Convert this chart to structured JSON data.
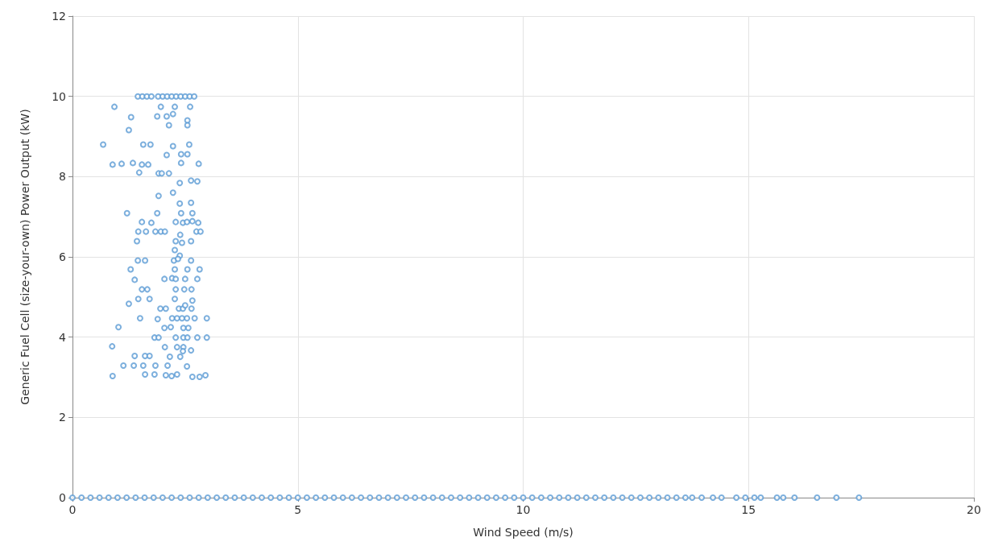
{
  "chart_data": {
    "type": "scatter",
    "xlabel": "Wind Speed (m/s)",
    "ylabel": "Generic Fuel Cell (size-your-own) Power Output (kW)",
    "xlim": [
      0,
      20
    ],
    "xticks": [
      0,
      5,
      10,
      15,
      20
    ],
    "ylim": [
      0,
      12
    ],
    "yticks": [
      0,
      2,
      4,
      6,
      8,
      10,
      12
    ],
    "grid": true,
    "marker": "circle",
    "series": [
      {
        "color": "#5b9bd5",
        "x": [
          1.45,
          1.55,
          1.65,
          1.75,
          1.9,
          2.0,
          2.1,
          2.2,
          2.3,
          2.4,
          2.5,
          2.6,
          2.7,
          0.93,
          1.96,
          2.27,
          2.61,
          1.3,
          1.88,
          2.09,
          2.23,
          2.55,
          2.55,
          2.14,
          1.25,
          0.68,
          1.57,
          1.73,
          2.23,
          2.59,
          2.09,
          2.41,
          2.55,
          0.89,
          1.09,
          1.34,
          1.54,
          1.68,
          2.8,
          2.41,
          1.48,
          1.91,
          1.98,
          2.14,
          2.38,
          2.63,
          2.77,
          1.91,
          2.23,
          2.38,
          2.63,
          1.21,
          1.88,
          2.41,
          2.66,
          1.54,
          1.75,
          2.29,
          2.45,
          2.54,
          2.66,
          2.79,
          1.46,
          1.63,
          1.84,
          1.96,
          2.05,
          2.39,
          2.75,
          2.84,
          1.43,
          2.29,
          2.43,
          2.63,
          2.27,
          2.38,
          1.45,
          1.61,
          2.25,
          2.34,
          2.63,
          1.29,
          2.27,
          2.55,
          2.82,
          1.38,
          2.21,
          2.29,
          2.04,
          2.5,
          2.77,
          1.54,
          1.66,
          2.29,
          2.48,
          2.64,
          1.25,
          1.46,
          1.71,
          2.27,
          2.66,
          1.95,
          2.07,
          2.36,
          2.45,
          2.5,
          2.64,
          1.5,
          1.89,
          2.21,
          2.32,
          2.43,
          2.54,
          2.71,
          2.98,
          1.02,
          2.04,
          2.18,
          2.46,
          2.57,
          1.82,
          1.91,
          2.29,
          2.46,
          2.55,
          2.77,
          2.98,
          0.88,
          2.05,
          2.32,
          2.46,
          2.63,
          1.38,
          1.61,
          1.71,
          2.16,
          2.39,
          1.13,
          1.36,
          1.57,
          1.84,
          2.11,
          2.54,
          0.89,
          1.61,
          1.82,
          2.07,
          2.2,
          2.32,
          2.66,
          2.82,
          2.95,
          2.45,
          0,
          0.2,
          0.4,
          0.6,
          0.8,
          1,
          1.2,
          1.4,
          1.6,
          1.8,
          2,
          2.2,
          2.4,
          2.6,
          2.8,
          3,
          3.2,
          3.4,
          3.6,
          3.8,
          4,
          4.2,
          4.4,
          4.6,
          4.8,
          5,
          5.2,
          5.4,
          5.6,
          5.8,
          6,
          6.2,
          6.4,
          6.6,
          6.8,
          7,
          7.2,
          7.4,
          7.6,
          7.8,
          8,
          8.2,
          8.4,
          8.6,
          8.8,
          9,
          9.2,
          9.4,
          9.6,
          9.8,
          10,
          10.2,
          10.4,
          10.6,
          10.8,
          11,
          11.2,
          11.4,
          11.6,
          11.8,
          12,
          12.2,
          12.4,
          12.6,
          12.8,
          13,
          13.2,
          13.4,
          13.6,
          13.75,
          13.96,
          14.21,
          14.4,
          14.73,
          14.93,
          15.13,
          15.27,
          15.63,
          15.77,
          16.02,
          16.52,
          16.95,
          17.45
        ],
        "values": [
          10,
          10,
          10,
          10,
          10,
          10,
          10,
          10,
          10,
          10,
          10,
          10,
          10,
          9.74,
          9.74,
          9.74,
          9.74,
          9.48,
          9.5,
          9.5,
          9.56,
          9.4,
          9.28,
          9.28,
          9.16,
          8.8,
          8.8,
          8.8,
          8.76,
          8.8,
          8.54,
          8.56,
          8.56,
          8.3,
          8.32,
          8.34,
          8.3,
          8.3,
          8.32,
          8.34,
          8.1,
          8.08,
          8.08,
          8.08,
          7.84,
          7.9,
          7.88,
          7.52,
          7.6,
          7.33,
          7.35,
          7.09,
          7.09,
          7.09,
          7.09,
          6.87,
          6.85,
          6.87,
          6.85,
          6.87,
          6.89,
          6.85,
          6.63,
          6.63,
          6.63,
          6.63,
          6.63,
          6.55,
          6.63,
          6.63,
          6.39,
          6.39,
          6.35,
          6.39,
          6.17,
          6.03,
          5.91,
          5.91,
          5.91,
          5.95,
          5.91,
          5.69,
          5.69,
          5.69,
          5.69,
          5.43,
          5.47,
          5.45,
          5.45,
          5.45,
          5.45,
          5.19,
          5.19,
          5.19,
          5.19,
          5.19,
          4.83,
          4.95,
          4.95,
          4.95,
          4.91,
          4.71,
          4.71,
          4.71,
          4.71,
          4.79,
          4.71,
          4.47,
          4.45,
          4.47,
          4.47,
          4.47,
          4.47,
          4.47,
          4.47,
          4.25,
          4.23,
          4.25,
          4.23,
          4.23,
          3.99,
          3.99,
          3.99,
          3.99,
          3.99,
          3.99,
          3.99,
          3.77,
          3.75,
          3.75,
          3.75,
          3.67,
          3.53,
          3.53,
          3.53,
          3.51,
          3.51,
          3.29,
          3.29,
          3.29,
          3.29,
          3.29,
          3.27,
          3.03,
          3.07,
          3.07,
          3.05,
          3.03,
          3.07,
          3.01,
          3.01,
          3.05,
          3.65,
          0,
          0,
          0,
          0,
          0,
          0,
          0,
          0,
          0,
          0,
          0,
          0,
          0,
          0,
          0,
          0,
          0,
          0,
          0,
          0,
          0,
          0,
          0,
          0,
          0,
          0,
          0,
          0,
          0,
          0,
          0,
          0,
          0,
          0,
          0,
          0,
          0,
          0,
          0,
          0,
          0,
          0,
          0,
          0,
          0,
          0,
          0,
          0,
          0,
          0,
          0,
          0,
          0,
          0,
          0,
          0,
          0,
          0,
          0,
          0,
          0,
          0,
          0,
          0,
          0,
          0,
          0,
          0,
          0,
          0,
          0,
          0,
          0,
          0,
          0,
          0,
          0,
          0,
          0,
          0,
          0,
          0,
          0
        ]
      }
    ]
  }
}
